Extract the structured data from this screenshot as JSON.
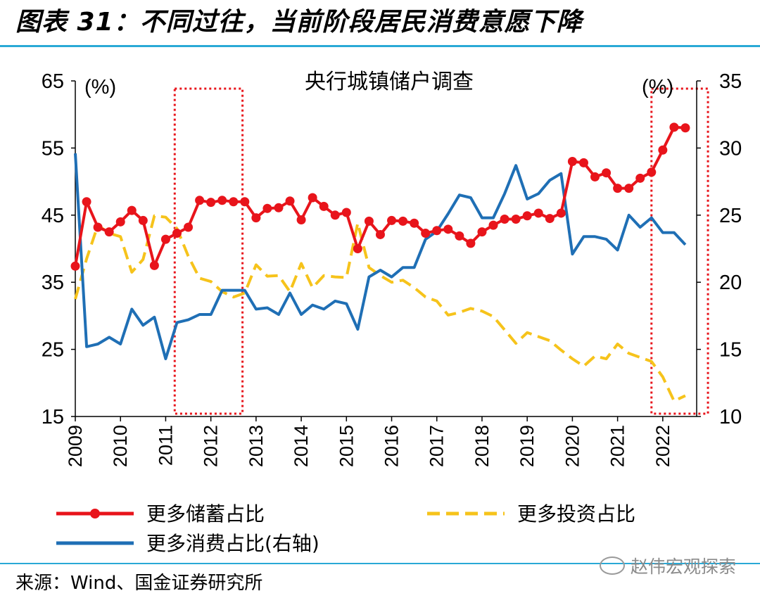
{
  "header": {
    "title": "图表 31：不同过往，当前阶段居民消费意愿下降"
  },
  "footer": {
    "source": "来源：Wind、国金证券研究所",
    "watermark": "赵伟宏观探索"
  },
  "colors": {
    "savings": "#e8141b",
    "investment": "#f6c31b",
    "consumption": "#1f6fb5",
    "highlight_box": "#e8141b",
    "rule": "#2aa9d6"
  },
  "chart_data": {
    "type": "line",
    "title": "央行城镇储户调查",
    "left_unit": "(%)",
    "right_unit": "(%)",
    "x_range": [
      2009,
      2022.75
    ],
    "y_left": {
      "min": 15,
      "max": 65,
      "ticks": [
        15,
        25,
        35,
        45,
        55,
        65
      ]
    },
    "y_right": {
      "min": 10,
      "max": 35,
      "ticks": [
        10,
        15,
        20,
        25,
        30,
        35
      ]
    },
    "x_ticks": [
      "2009",
      "2010",
      "2011",
      "2012",
      "2013",
      "2014",
      "2015",
      "2016",
      "2017",
      "2018",
      "2019",
      "2020",
      "2021",
      "2022"
    ],
    "highlight_ranges": [
      [
        2011.2,
        2012.7
      ],
      [
        2021.75,
        2023.0
      ]
    ],
    "grid": false,
    "legend_position": "bottom",
    "series": [
      {
        "name": "更多储蓄占比",
        "axis": "left",
        "style": "solid-marker",
        "x": [
          2009.0,
          2009.25,
          2009.5,
          2009.75,
          2010.0,
          2010.25,
          2010.5,
          2010.75,
          2011.0,
          2011.25,
          2011.5,
          2011.75,
          2012.0,
          2012.25,
          2012.5,
          2012.75,
          2013.0,
          2013.25,
          2013.5,
          2013.75,
          2014.0,
          2014.25,
          2014.5,
          2014.75,
          2015.0,
          2015.25,
          2015.5,
          2015.75,
          2016.0,
          2016.25,
          2016.5,
          2016.75,
          2017.0,
          2017.25,
          2017.5,
          2017.75,
          2018.0,
          2018.25,
          2018.5,
          2018.75,
          2019.0,
          2019.25,
          2019.5,
          2019.75,
          2020.0,
          2020.25,
          2020.5,
          2020.75,
          2021.0,
          2021.25,
          2021.5,
          2021.75,
          2022.0,
          2022.25,
          2022.5
        ],
        "values": [
          37.4,
          47.0,
          43.2,
          42.5,
          44.0,
          45.7,
          44.2,
          37.5,
          41.4,
          42.3,
          43.2,
          47.2,
          46.9,
          47.2,
          47.0,
          47.0,
          44.6,
          46.0,
          46.1,
          47.1,
          44.3,
          47.6,
          46.3,
          45.0,
          45.4,
          40.0,
          44.1,
          42.1,
          44.2,
          44.1,
          43.8,
          42.3,
          42.7,
          42.9,
          41.9,
          40.8,
          42.5,
          43.5,
          44.4,
          44.4,
          44.9,
          45.3,
          44.5,
          45.3,
          53.0,
          52.8,
          50.7,
          51.3,
          49.0,
          49.0,
          50.5,
          51.4,
          54.7,
          58.1,
          58.0
        ]
      },
      {
        "name": "更多投资占比",
        "axis": "left",
        "style": "dashed",
        "x": [
          2009.0,
          2009.25,
          2009.5,
          2009.75,
          2010.0,
          2010.25,
          2010.5,
          2010.75,
          2011.0,
          2011.25,
          2011.5,
          2011.75,
          2012.0,
          2012.25,
          2012.5,
          2012.75,
          2013.0,
          2013.25,
          2013.5,
          2013.75,
          2014.0,
          2014.25,
          2014.5,
          2014.75,
          2015.0,
          2015.25,
          2015.5,
          2015.75,
          2016.0,
          2016.25,
          2016.5,
          2016.75,
          2017.0,
          2017.25,
          2017.5,
          2017.75,
          2018.0,
          2018.25,
          2018.5,
          2018.75,
          2019.0,
          2019.25,
          2019.5,
          2019.75,
          2020.0,
          2020.25,
          2020.5,
          2020.75,
          2021.0,
          2021.25,
          2021.5,
          2021.75,
          2022.0,
          2022.25,
          2022.5
        ],
        "values": [
          32.5,
          38.5,
          43.5,
          42.3,
          41.8,
          36.5,
          38.4,
          44.9,
          44.7,
          43.0,
          38.9,
          35.6,
          35.1,
          33.6,
          32.8,
          33.4,
          37.6,
          35.9,
          36.0,
          33.6,
          37.8,
          34.2,
          36.0,
          35.8,
          35.7,
          43.8,
          37.2,
          36.0,
          35.0,
          35.3,
          34.2,
          32.8,
          32.2,
          30.1,
          30.5,
          31.1,
          30.7,
          29.9,
          27.9,
          25.9,
          27.5,
          26.9,
          26.3,
          24.9,
          23.6,
          22.5,
          24.0,
          23.6,
          25.8,
          24.4,
          23.8,
          23.2,
          20.9,
          17.3,
          18.1
        ]
      },
      {
        "name": "更多消费占比(右轴)",
        "axis": "right",
        "style": "solid",
        "x": [
          2009.0,
          2009.25,
          2009.5,
          2009.75,
          2010.0,
          2010.25,
          2010.5,
          2010.75,
          2011.0,
          2011.25,
          2011.5,
          2011.75,
          2012.0,
          2012.25,
          2012.5,
          2012.75,
          2013.0,
          2013.25,
          2013.5,
          2013.75,
          2014.0,
          2014.25,
          2014.5,
          2014.75,
          2015.0,
          2015.25,
          2015.5,
          2015.75,
          2016.0,
          2016.25,
          2016.5,
          2016.75,
          2017.0,
          2017.25,
          2017.5,
          2017.75,
          2018.0,
          2018.25,
          2018.5,
          2018.75,
          2019.0,
          2019.25,
          2019.5,
          2019.75,
          2020.0,
          2020.25,
          2020.5,
          2020.75,
          2021.0,
          2021.25,
          2021.5,
          2021.75,
          2022.0,
          2022.25,
          2022.5
        ],
        "values": [
          29.6,
          15.2,
          15.4,
          15.9,
          15.4,
          18.0,
          16.8,
          17.4,
          14.3,
          17.0,
          17.2,
          17.6,
          17.6,
          19.4,
          19.4,
          19.4,
          18.0,
          18.1,
          17.6,
          19.2,
          17.6,
          18.3,
          18.0,
          18.6,
          18.4,
          16.5,
          20.4,
          20.9,
          20.4,
          21.1,
          21.1,
          23.2,
          23.8,
          25.1,
          26.5,
          26.3,
          24.8,
          24.8,
          26.6,
          28.7,
          26.2,
          26.6,
          27.6,
          28.1,
          22.1,
          23.4,
          23.4,
          23.2,
          22.4,
          25.0,
          24.1,
          24.8,
          23.7,
          23.7,
          22.8
        ]
      }
    ]
  }
}
